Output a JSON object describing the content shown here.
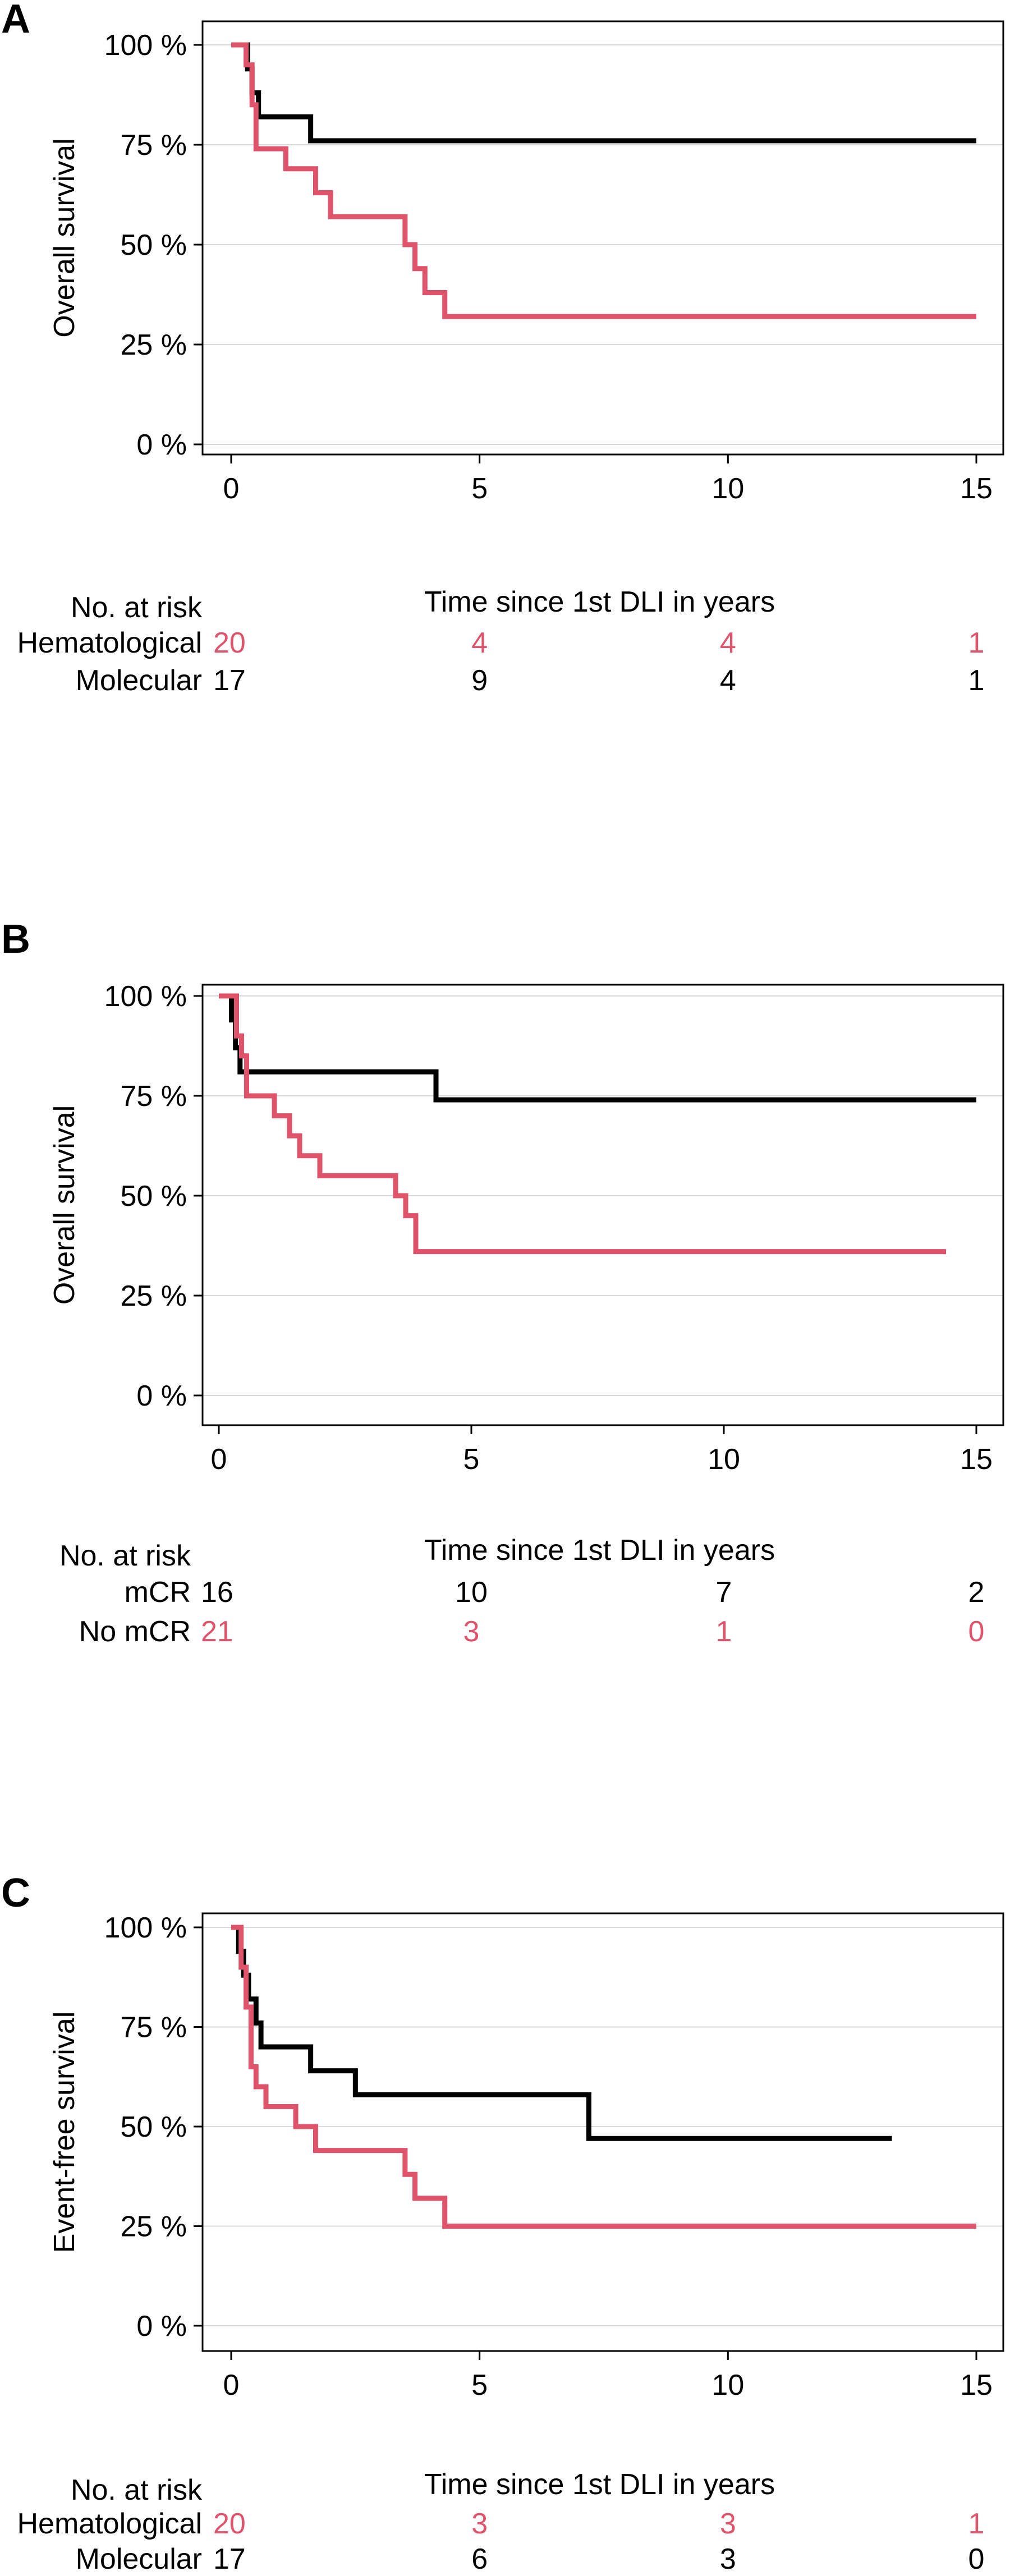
{
  "chart_data": [
    {
      "type": "line",
      "step": true,
      "panel_label": "A",
      "ylabel": "Overall survival",
      "xlabel": "Time since 1st DLI in years",
      "xlim": [
        0,
        15
      ],
      "ylim": [
        0,
        100
      ],
      "x_ticks": [
        0,
        5,
        10,
        15
      ],
      "y_ticks": [
        0,
        25,
        50,
        75,
        100
      ],
      "y_tick_labels": [
        "0 %",
        "25 %",
        "50 %",
        "75 %",
        "100 %"
      ],
      "grid": "horizontal",
      "risk_title": "No. at risk",
      "series": [
        {
          "name": "Molecular",
          "color": "#000000",
          "x": [
            0,
            0.33,
            0.42,
            0.55,
            1.6,
            15
          ],
          "y": [
            100,
            94,
            88,
            82,
            76,
            76
          ],
          "at_risk": [
            17,
            9,
            4,
            1
          ]
        },
        {
          "name": "Hematological",
          "color": "#df536b",
          "x": [
            0,
            0.3,
            0.42,
            0.5,
            1.1,
            1.7,
            2.0,
            3.5,
            3.7,
            3.9,
            4.3,
            15
          ],
          "y": [
            100,
            95,
            85,
            74,
            69,
            63,
            57,
            50,
            44,
            38,
            32,
            32
          ],
          "at_risk": [
            20,
            4,
            4,
            1
          ]
        }
      ]
    },
    {
      "type": "line",
      "step": true,
      "panel_label": "B",
      "ylabel": "Overall survival",
      "xlabel": "Time since 1st DLI in years",
      "xlim": [
        0,
        15
      ],
      "ylim": [
        0,
        100
      ],
      "x_ticks": [
        0,
        5,
        10,
        15
      ],
      "y_ticks": [
        0,
        25,
        50,
        75,
        100
      ],
      "y_tick_labels": [
        "0 %",
        "25 %",
        "50 %",
        "75 %",
        "100 %"
      ],
      "grid": "horizontal",
      "risk_title": "No. at risk",
      "series": [
        {
          "name": "mCR",
          "color": "#000000",
          "x": [
            0,
            0.25,
            0.33,
            0.42,
            4.3,
            15
          ],
          "y": [
            100,
            94,
            87,
            81,
            74,
            74
          ],
          "at_risk": [
            16,
            10,
            7,
            2
          ]
        },
        {
          "name": "No mCR",
          "color": "#df536b",
          "x": [
            0,
            0.35,
            0.45,
            0.55,
            1.1,
            1.4,
            1.6,
            2.0,
            3.5,
            3.7,
            3.9,
            14.4
          ],
          "y": [
            100,
            90,
            85,
            75,
            70,
            65,
            60,
            55,
            50,
            45,
            36,
            36
          ],
          "at_risk": [
            21,
            3,
            1,
            0
          ]
        }
      ]
    },
    {
      "type": "line",
      "step": true,
      "panel_label": "C",
      "ylabel": "Event-free survival",
      "xlabel": "Time since 1st DLI in years",
      "xlim": [
        0,
        15
      ],
      "ylim": [
        0,
        100
      ],
      "x_ticks": [
        0,
        5,
        10,
        15
      ],
      "y_ticks": [
        0,
        25,
        50,
        75,
        100
      ],
      "y_tick_labels": [
        "0 %",
        "25 %",
        "50 %",
        "75 %",
        "100 %"
      ],
      "grid": "horizontal",
      "risk_title": "No. at risk",
      "series": [
        {
          "name": "Molecular",
          "color": "#000000",
          "x": [
            0,
            0.15,
            0.25,
            0.35,
            0.5,
            0.6,
            1.6,
            2.5,
            7.2,
            13.3
          ],
          "y": [
            100,
            94,
            88,
            82,
            76,
            70,
            64,
            58,
            47,
            47
          ],
          "at_risk": [
            17,
            6,
            3,
            0
          ]
        },
        {
          "name": "Hematological",
          "color": "#df536b",
          "x": [
            0,
            0.2,
            0.3,
            0.4,
            0.5,
            0.7,
            1.3,
            1.7,
            3.5,
            3.7,
            4.3,
            15
          ],
          "y": [
            100,
            90,
            80,
            65,
            60,
            55,
            50,
            44,
            38,
            32,
            25,
            25
          ],
          "at_risk": [
            20,
            3,
            3,
            1
          ]
        }
      ]
    }
  ]
}
